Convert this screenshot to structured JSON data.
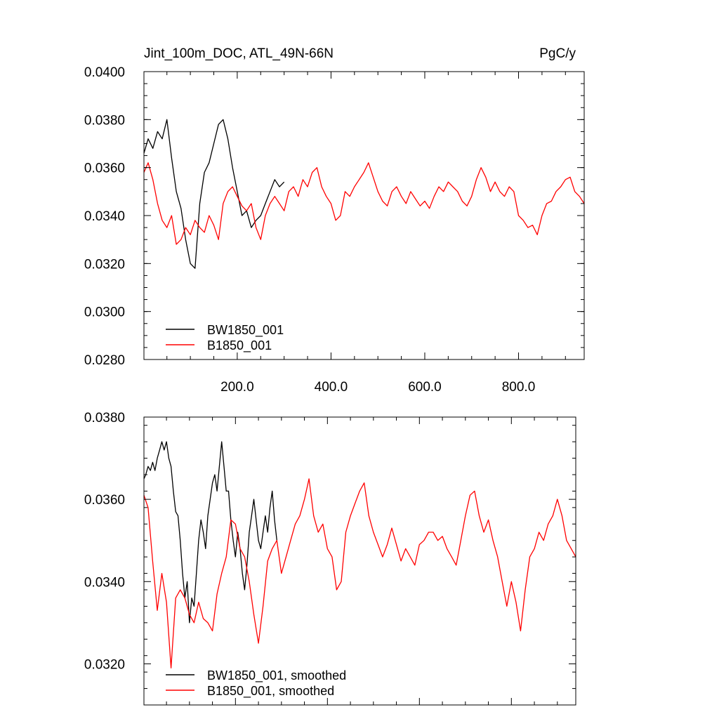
{
  "chart_data": [
    {
      "type": "line",
      "title_left": "Jint_100m_DOC, ATL_49N-66N",
      "title_right": "PgC/y",
      "xlim": [
        1,
        940
      ],
      "ylim": [
        0.028,
        0.04
      ],
      "x_ticks": [
        200,
        400,
        600,
        800
      ],
      "x_tick_labels": [
        "200.0",
        "400.0",
        "600.0",
        "800.0"
      ],
      "y_ticks": [
        0.028,
        0.03,
        0.032,
        0.034,
        0.036,
        0.038,
        0.04
      ],
      "y_tick_labels": [
        "0.0280",
        "0.0300",
        "0.0320",
        "0.0340",
        "0.0360",
        "0.0380",
        "0.0400"
      ],
      "legend_position": "bottom-left",
      "series": [
        {
          "name": "BW1850_001",
          "color": "#000000",
          "x": [
            1,
            10,
            20,
            30,
            40,
            50,
            60,
            70,
            80,
            90,
            100,
            110,
            120,
            130,
            140,
            150,
            160,
            170,
            180,
            190,
            200,
            210,
            220,
            230,
            240,
            250,
            260,
            270,
            280,
            290,
            300
          ],
          "y": [
            0.0366,
            0.0372,
            0.0368,
            0.0375,
            0.0372,
            0.038,
            0.0364,
            0.035,
            0.0343,
            0.033,
            0.032,
            0.0318,
            0.0345,
            0.0358,
            0.0362,
            0.037,
            0.0378,
            0.038,
            0.0372,
            0.036,
            0.035,
            0.034,
            0.0342,
            0.0335,
            0.0338,
            0.034,
            0.0345,
            0.035,
            0.0355,
            0.0352,
            0.0354
          ]
        },
        {
          "name": "B1850_001",
          "color": "#ff0000",
          "x": [
            1,
            10,
            20,
            30,
            40,
            50,
            60,
            70,
            80,
            90,
            100,
            110,
            120,
            130,
            140,
            150,
            160,
            170,
            180,
            190,
            200,
            210,
            220,
            230,
            240,
            250,
            260,
            270,
            280,
            290,
            300,
            310,
            320,
            330,
            340,
            350,
            360,
            370,
            380,
            390,
            400,
            410,
            420,
            430,
            440,
            450,
            460,
            470,
            480,
            490,
            500,
            510,
            520,
            530,
            540,
            550,
            560,
            570,
            580,
            590,
            600,
            610,
            620,
            630,
            640,
            650,
            660,
            670,
            680,
            690,
            700,
            710,
            720,
            730,
            740,
            750,
            760,
            770,
            780,
            790,
            800,
            810,
            820,
            830,
            840,
            850,
            860,
            870,
            880,
            890,
            900,
            910,
            920,
            930,
            940
          ],
          "y": [
            0.0358,
            0.0362,
            0.0355,
            0.0345,
            0.0338,
            0.0335,
            0.034,
            0.0328,
            0.033,
            0.0335,
            0.0332,
            0.0338,
            0.0335,
            0.0333,
            0.034,
            0.0336,
            0.033,
            0.0345,
            0.035,
            0.0352,
            0.0348,
            0.0344,
            0.0342,
            0.0345,
            0.0335,
            0.033,
            0.034,
            0.0345,
            0.0348,
            0.0345,
            0.0342,
            0.035,
            0.0352,
            0.0348,
            0.0355,
            0.0352,
            0.0358,
            0.036,
            0.0352,
            0.0348,
            0.0345,
            0.0338,
            0.034,
            0.035,
            0.0348,
            0.0352,
            0.0355,
            0.0358,
            0.0362,
            0.0356,
            0.035,
            0.0346,
            0.0344,
            0.035,
            0.0352,
            0.0348,
            0.0345,
            0.035,
            0.0347,
            0.0344,
            0.0346,
            0.0343,
            0.0348,
            0.0352,
            0.035,
            0.0354,
            0.0352,
            0.035,
            0.0346,
            0.0344,
            0.0348,
            0.0355,
            0.036,
            0.0356,
            0.035,
            0.0354,
            0.035,
            0.0348,
            0.0352,
            0.035,
            0.034,
            0.0338,
            0.0335,
            0.0336,
            0.0332,
            0.034,
            0.0345,
            0.0346,
            0.035,
            0.0352,
            0.0355,
            0.0356,
            0.035,
            0.0348,
            0.0345
          ]
        }
      ]
    },
    {
      "type": "line",
      "xlim": [
        1,
        940
      ],
      "ylim": [
        0.031,
        0.038
      ],
      "y_ticks": [
        0.032,
        0.034,
        0.036,
        0.038
      ],
      "y_tick_labels": [
        "0.0320",
        "0.0340",
        "0.0360",
        "0.0380"
      ],
      "legend_position": "bottom-left",
      "series": [
        {
          "name": "BW1850_001, smoothed",
          "color": "#000000",
          "x": [
            1,
            5,
            10,
            15,
            20,
            25,
            30,
            35,
            40,
            45,
            50,
            55,
            60,
            65,
            70,
            75,
            80,
            85,
            90,
            95,
            100,
            105,
            110,
            115,
            120,
            125,
            130,
            135,
            140,
            145,
            150,
            155,
            160,
            165,
            170,
            175,
            180,
            185,
            190,
            195,
            200,
            205,
            210,
            215,
            220,
            225,
            230,
            235,
            240,
            245,
            250,
            255,
            260,
            265,
            270,
            275,
            280,
            285,
            290
          ],
          "y": [
            0.0365,
            0.0366,
            0.0368,
            0.0367,
            0.0369,
            0.0367,
            0.037,
            0.0372,
            0.0374,
            0.0372,
            0.0374,
            0.037,
            0.0368,
            0.0362,
            0.0357,
            0.0356,
            0.035,
            0.0342,
            0.0336,
            0.034,
            0.033,
            0.0336,
            0.0334,
            0.0342,
            0.035,
            0.0355,
            0.0352,
            0.0348,
            0.0356,
            0.036,
            0.0364,
            0.0366,
            0.0362,
            0.0368,
            0.0374,
            0.0368,
            0.0362,
            0.0362,
            0.0355,
            0.035,
            0.0346,
            0.0352,
            0.0348,
            0.0342,
            0.0338,
            0.0344,
            0.0352,
            0.0356,
            0.036,
            0.0355,
            0.035,
            0.0348,
            0.0352,
            0.0356,
            0.0352,
            0.0358,
            0.0362,
            0.0355,
            0.035
          ]
        },
        {
          "name": "B1850_001, smoothed",
          "color": "#ff0000",
          "x": [
            1,
            10,
            20,
            30,
            40,
            50,
            60,
            70,
            80,
            90,
            100,
            110,
            120,
            130,
            140,
            150,
            160,
            170,
            180,
            190,
            200,
            210,
            220,
            230,
            240,
            250,
            260,
            270,
            280,
            290,
            300,
            310,
            320,
            330,
            340,
            350,
            360,
            370,
            380,
            390,
            400,
            410,
            420,
            430,
            440,
            450,
            460,
            470,
            480,
            490,
            500,
            510,
            520,
            530,
            540,
            550,
            560,
            570,
            580,
            590,
            600,
            610,
            620,
            630,
            640,
            650,
            660,
            670,
            680,
            690,
            700,
            710,
            720,
            730,
            740,
            750,
            760,
            770,
            780,
            790,
            800,
            810,
            820,
            830,
            840,
            850,
            860,
            870,
            880,
            890,
            900,
            910,
            920,
            930,
            940
          ],
          "y": [
            0.0361,
            0.0358,
            0.0345,
            0.0333,
            0.0342,
            0.0335,
            0.0319,
            0.0336,
            0.0338,
            0.0336,
            0.0332,
            0.033,
            0.0335,
            0.0331,
            0.033,
            0.0328,
            0.0337,
            0.0342,
            0.0346,
            0.0355,
            0.0354,
            0.0348,
            0.0346,
            0.034,
            0.0332,
            0.0325,
            0.0334,
            0.0345,
            0.0348,
            0.035,
            0.0342,
            0.0346,
            0.035,
            0.0354,
            0.0356,
            0.036,
            0.0365,
            0.0356,
            0.0352,
            0.0354,
            0.0348,
            0.0346,
            0.0338,
            0.034,
            0.0352,
            0.0356,
            0.0359,
            0.0362,
            0.0364,
            0.0356,
            0.0352,
            0.0349,
            0.0346,
            0.0349,
            0.0353,
            0.0349,
            0.0345,
            0.0348,
            0.0346,
            0.0344,
            0.0349,
            0.035,
            0.0352,
            0.0352,
            0.035,
            0.0351,
            0.0348,
            0.0346,
            0.0344,
            0.035,
            0.0356,
            0.0361,
            0.0362,
            0.0356,
            0.0352,
            0.0355,
            0.035,
            0.0346,
            0.034,
            0.0334,
            0.034,
            0.0335,
            0.0328,
            0.0338,
            0.0346,
            0.0348,
            0.0352,
            0.035,
            0.0354,
            0.0356,
            0.036,
            0.0356,
            0.035,
            0.0348,
            0.0346
          ]
        }
      ]
    }
  ]
}
